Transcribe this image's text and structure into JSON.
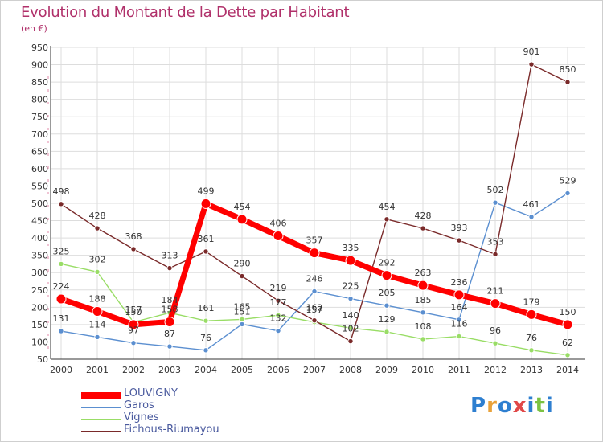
{
  "title": "Evolution du Montant de la Dette par Habitant",
  "subtitle": "(en €)",
  "logo": {
    "text": "Proxiti",
    "colors": [
      "#2e7fd0",
      "#e9a23a",
      "#2e7fd0",
      "#e04848",
      "#2e7fd0",
      "#7cc242",
      "#2e7fd0"
    ]
  },
  "chart_data": {
    "type": "line",
    "title": "Evolution du Montant de la Dette par Habitant",
    "subtitle": "(en €)",
    "xlabel": "",
    "ylabel": "",
    "x": [
      "2000",
      "2001",
      "2002",
      "2003",
      "2004",
      "2005",
      "2006",
      "2007",
      "2008",
      "2009",
      "2010",
      "2011",
      "2012",
      "2013",
      "2014"
    ],
    "ylim": [
      50,
      950
    ],
    "yticks": [
      50,
      100,
      150,
      200,
      250,
      300,
      350,
      400,
      450,
      500,
      550,
      600,
      650,
      700,
      750,
      800,
      850,
      900,
      950
    ],
    "grid": true,
    "legend_position": "bottom-left",
    "series": [
      {
        "name": "LOUVIGNY",
        "color": "#ff0000",
        "values": [
          224,
          188,
          150,
          158,
          499,
          454,
          406,
          357,
          335,
          292,
          263,
          236,
          211,
          179,
          150
        ]
      },
      {
        "name": "Garos",
        "color": "#5b8fd0",
        "values": [
          131,
          114,
          97,
          87,
          76,
          151,
          132,
          246,
          225,
          205,
          185,
          164,
          502,
          461,
          529
        ]
      },
      {
        "name": "Vignes",
        "color": "#99dd66",
        "values": [
          325,
          302,
          157,
          184,
          161,
          165,
          177,
          157,
          140,
          129,
          108,
          116,
          96,
          76,
          62
        ]
      },
      {
        "name": "Fichous-Riumayou",
        "color": "#7a2a2a",
        "values": [
          498,
          428,
          368,
          313,
          361,
          290,
          219,
          162,
          102,
          454,
          428,
          393,
          353,
          901,
          850
        ]
      }
    ]
  }
}
